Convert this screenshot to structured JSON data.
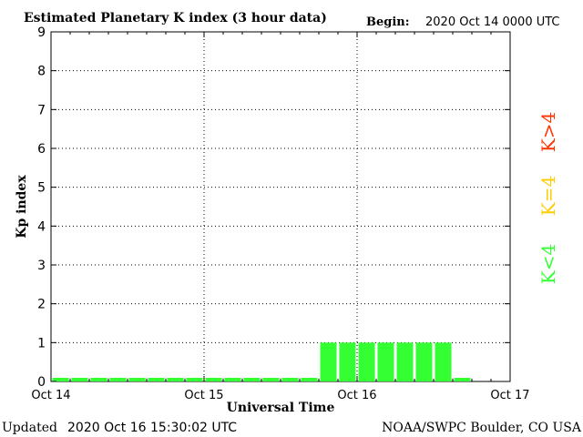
{
  "header": {
    "title": "Estimated Planetary K index (3 hour data)",
    "begin_label": "Begin:",
    "begin_value": "2020 Oct 14 0000 UTC"
  },
  "footer": {
    "updated_label": "Updated",
    "updated_value": "2020 Oct 16 15:30:02 UTC",
    "source": "NOAA/SWPC Boulder, CO USA"
  },
  "legend": {
    "items": [
      {
        "label": "K>4",
        "color": "#ff3300"
      },
      {
        "label": "K=4",
        "color": "#ffcc00"
      },
      {
        "label": "K<4",
        "color": "#33ff33"
      }
    ]
  },
  "chart_data": {
    "type": "bar",
    "title": "Estimated Planetary K index (3 hour data)",
    "xlabel": "Universal Time",
    "ylabel": "Kp index",
    "ylim": [
      0,
      9
    ],
    "yticks": [
      0,
      1,
      2,
      3,
      4,
      5,
      6,
      7,
      8,
      9
    ],
    "xticks": [
      "Oct 14",
      "Oct 15",
      "Oct 16",
      "Oct 17"
    ],
    "grid": true,
    "bar_color": "#33ff33",
    "x_unit": "3-hour interval starting 2020 Oct 14 00:00 UTC",
    "values": [
      0,
      0,
      0,
      0,
      0,
      0,
      0,
      0,
      0,
      0,
      0,
      0,
      0,
      0,
      1,
      1,
      1,
      1,
      1,
      1,
      1,
      0
    ]
  }
}
